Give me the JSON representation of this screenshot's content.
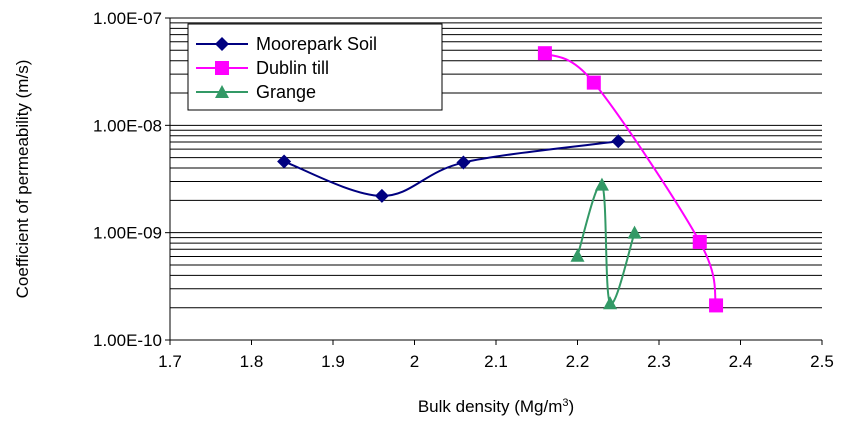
{
  "chart_data": {
    "type": "scatter",
    "title": "",
    "xlabel": "Bulk density (Mg/m",
    "xlabel_superscript": "3",
    "xlabel_suffix": ")",
    "ylabel": "Coefficient of permeability (m/s)",
    "x_ticks": [
      "1.7",
      "1.8",
      "1.9",
      "2",
      "2.1",
      "2.2",
      "2.3",
      "2.4",
      "2.5"
    ],
    "xlim": [
      1.7,
      2.5
    ],
    "y_ticks": [
      "1.00E-10",
      "1.00E-09",
      "1.00E-08",
      "1.00E-07"
    ],
    "ylim": [
      1e-10,
      1e-07
    ],
    "y_scale": "log",
    "grid": true,
    "legend_position": "top-left",
    "series": [
      {
        "name": "Moorepark Soil",
        "marker": "diamond",
        "color": "#000080",
        "x": [
          1.84,
          1.96,
          2.06,
          2.25
        ],
        "y": [
          4.6e-09,
          2.2e-09,
          4.5e-09,
          7.1e-09
        ]
      },
      {
        "name": "Dublin till",
        "marker": "square",
        "color": "#ff00ff",
        "x": [
          2.16,
          2.22,
          2.35,
          2.37
        ],
        "y": [
          4.7e-08,
          2.5e-08,
          8.2e-10,
          2.1e-10
        ]
      },
      {
        "name": "Grange",
        "marker": "triangle",
        "color": "#339966",
        "x": [
          2.2,
          2.23,
          2.24,
          2.27
        ],
        "y": [
          6.1e-10,
          2.8e-09,
          2.2e-10,
          1e-09
        ]
      }
    ]
  }
}
